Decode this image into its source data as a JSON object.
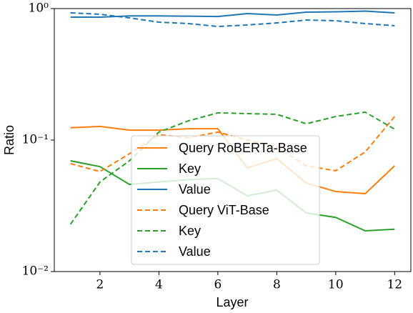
{
  "chart_data": {
    "type": "line",
    "xlabel": "Layer",
    "ylabel": "Ratio",
    "x": [
      1,
      2,
      3,
      4,
      5,
      6,
      7,
      8,
      9,
      10,
      11,
      12
    ],
    "xlim": [
      0.45,
      12.55
    ],
    "xticks": [
      2,
      4,
      6,
      8,
      10,
      12
    ],
    "ylim": [
      0.01,
      1
    ],
    "ylog": true,
    "yticks": [
      {
        "value": 0.01,
        "label": "10⁻²"
      },
      {
        "value": 0.1,
        "label": "10⁻¹"
      },
      {
        "value": 1,
        "label": "10⁰"
      }
    ],
    "legend": "lower center",
    "series": [
      {
        "name": "Query RoBERTa-Base",
        "color": "#ff7f0e",
        "linestyle": "solid",
        "values": [
          0.124,
          0.127,
          0.119,
          0.119,
          0.122,
          0.122,
          0.0614,
          0.0722,
          0.0472,
          0.0406,
          0.0391,
          0.0637
        ]
      },
      {
        "name": "Key",
        "color": "#2ca02c",
        "linestyle": "solid",
        "values": [
          0.0696,
          0.0628,
          0.046,
          0.048,
          0.05,
          0.051,
          0.0377,
          0.0416,
          0.0279,
          0.0258,
          0.0204,
          0.021
        ]
      },
      {
        "name": "Value",
        "color": "#1f77b4",
        "linestyle": "solid",
        "values": [
          0.86,
          0.86,
          0.88,
          0.88,
          0.875,
          0.87,
          0.916,
          0.894,
          0.94,
          0.945,
          0.957,
          0.928
        ]
      },
      {
        "name": "Query ViT-Base",
        "color": "#ff7f0e",
        "linestyle": "dashed",
        "values": [
          0.0662,
          0.0576,
          0.0787,
          0.11,
          0.104,
          0.115,
          0.1,
          0.0892,
          0.0637,
          0.0584,
          0.0812,
          0.151
        ]
      },
      {
        "name": "Key",
        "color": "#2ca02c",
        "linestyle": "dashed",
        "values": [
          0.0229,
          0.048,
          0.0696,
          0.115,
          0.14,
          0.161,
          0.159,
          0.157,
          0.133,
          0.151,
          0.163,
          0.121
        ]
      },
      {
        "name": "Value",
        "color": "#1f77b4",
        "linestyle": "dashed",
        "values": [
          0.928,
          0.905,
          0.85,
          0.788,
          0.769,
          0.731,
          0.75,
          0.778,
          0.818,
          0.808,
          0.769,
          0.741
        ]
      }
    ]
  }
}
